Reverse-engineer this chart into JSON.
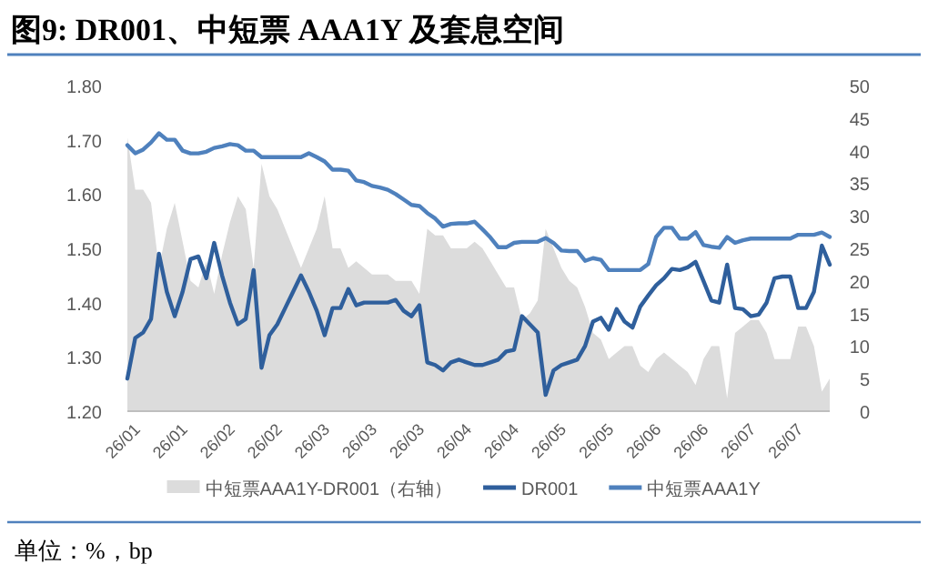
{
  "chart_data": {
    "type": "line",
    "title": "图9: DR001、中短票 AAA1Y 及套息空间",
    "categories": [
      "26/01",
      null,
      null,
      null,
      null,
      null,
      "26/01",
      null,
      null,
      null,
      null,
      null,
      "26/02",
      null,
      null,
      null,
      null,
      null,
      "26/02",
      null,
      null,
      null,
      null,
      null,
      "26/03",
      null,
      null,
      null,
      null,
      null,
      "26/03",
      null,
      null,
      null,
      null,
      null,
      "26/03",
      null,
      null,
      null,
      null,
      null,
      "26/04",
      null,
      null,
      null,
      null,
      null,
      "26/04",
      null,
      null,
      null,
      null,
      null,
      "26/05",
      null,
      null,
      null,
      null,
      null,
      "26/05",
      null,
      null,
      null,
      null,
      null,
      "26/06",
      null,
      null,
      null,
      null,
      null,
      "26/06",
      null,
      null,
      null,
      null,
      null,
      "26/07",
      null,
      null,
      null,
      null,
      null,
      "26/07",
      null,
      null,
      null,
      null,
      null
    ],
    "series": [
      {
        "name": "中短票AAA1Y-DR001（右轴）",
        "type": "area",
        "axis": "y2",
        "color": "#dcdcdc",
        "values": [
          42,
          34,
          34,
          32,
          22,
          28,
          32,
          26,
          20,
          19,
          23,
          18,
          24,
          29,
          33,
          31,
          22,
          38,
          33,
          31,
          28,
          25,
          22,
          25,
          28,
          33,
          25,
          25,
          22,
          23,
          22,
          21,
          21,
          21,
          20,
          20,
          20,
          18,
          28,
          27,
          27,
          25,
          25,
          25,
          26,
          25,
          23,
          21,
          19,
          19,
          14,
          15,
          17,
          28,
          25,
          22,
          20,
          19,
          16,
          12,
          11,
          8,
          9,
          10,
          10,
          7,
          6,
          8,
          9,
          8,
          7,
          6,
          4,
          8,
          10,
          10,
          2,
          12,
          13,
          14,
          14,
          12,
          8,
          8,
          8,
          13,
          13,
          10,
          3,
          5
        ]
      },
      {
        "name": "DR001",
        "color": "#2f5f9c",
        "values": [
          1.26,
          1.335,
          1.345,
          1.37,
          1.49,
          1.42,
          1.375,
          1.42,
          1.48,
          1.485,
          1.445,
          1.51,
          1.45,
          1.4,
          1.36,
          1.37,
          1.46,
          1.28,
          1.34,
          1.36,
          1.39,
          1.42,
          1.45,
          1.42,
          1.385,
          1.34,
          1.39,
          1.39,
          1.425,
          1.395,
          1.4,
          1.4,
          1.4,
          1.4,
          1.405,
          1.385,
          1.375,
          1.395,
          1.29,
          1.285,
          1.275,
          1.29,
          1.295,
          1.29,
          1.285,
          1.285,
          1.29,
          1.295,
          1.31,
          1.313,
          1.375,
          1.36,
          1.345,
          1.23,
          1.275,
          1.285,
          1.29,
          1.295,
          1.32,
          1.365,
          1.372,
          1.35,
          1.388,
          1.365,
          1.354,
          1.393,
          1.413,
          1.432,
          1.445,
          1.462,
          1.46,
          1.465,
          1.475,
          1.44,
          1.404,
          1.4,
          1.47,
          1.39,
          1.388,
          1.375,
          1.378,
          1.4,
          1.445,
          1.448,
          1.448,
          1.39,
          1.39,
          1.42,
          1.505,
          1.47
        ]
      },
      {
        "name": "中短票AAA1Y",
        "color": "#4f81bd",
        "values": [
          1.69,
          1.675,
          1.682,
          1.695,
          1.712,
          1.7,
          1.7,
          1.68,
          1.675,
          1.675,
          1.678,
          1.685,
          1.688,
          1.692,
          1.69,
          1.68,
          1.68,
          1.668,
          1.668,
          1.668,
          1.668,
          1.668,
          1.668,
          1.675,
          1.668,
          1.66,
          1.645,
          1.645,
          1.643,
          1.625,
          1.622,
          1.615,
          1.612,
          1.608,
          1.6,
          1.59,
          1.58,
          1.578,
          1.565,
          1.555,
          1.54,
          1.545,
          1.546,
          1.546,
          1.549,
          1.535,
          1.52,
          1.502,
          1.502,
          1.51,
          1.512,
          1.512,
          1.512,
          1.519,
          1.51,
          1.496,
          1.495,
          1.495,
          1.477,
          1.482,
          1.479,
          1.46,
          1.46,
          1.46,
          1.46,
          1.46,
          1.471,
          1.521,
          1.538,
          1.538,
          1.518,
          1.518,
          1.53,
          1.506,
          1.503,
          1.501,
          1.521,
          1.51,
          1.515,
          1.518,
          1.518,
          1.518,
          1.518,
          1.518,
          1.518,
          1.525,
          1.525,
          1.525,
          1.529,
          1.521
        ]
      }
    ],
    "ylim": [
      1.2,
      1.8
    ],
    "yticks": [
      {
        "value": 1.2,
        "label": "1.20"
      },
      {
        "value": 1.3,
        "label": "1.30"
      },
      {
        "value": 1.4,
        "label": "1.40"
      },
      {
        "value": 1.5,
        "label": "1.50"
      },
      {
        "value": 1.6,
        "label": "1.60"
      },
      {
        "value": 1.7,
        "label": "1.70"
      },
      {
        "value": 1.8,
        "label": "1.80"
      }
    ],
    "y2lim": [
      0,
      50
    ],
    "y2ticks": [
      0,
      5,
      10,
      15,
      20,
      25,
      30,
      35,
      40,
      45,
      50
    ],
    "legend": "bottom",
    "grid": false,
    "annotations": [
      "单位：%，bp"
    ]
  }
}
